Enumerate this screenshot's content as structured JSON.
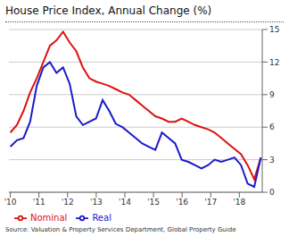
{
  "chart_data": {
    "type": "line",
    "title": "House Price Index, Annual Change (%)",
    "annotations": [
      "Source: Valuation & Property Services Department, Global Property Guide"
    ],
    "x": [
      2010,
      2010.230263,
      2010.460526,
      2010.690789,
      2010.921053,
      2011.151316,
      2011.381579,
      2011.611842,
      2011.842105,
      2012.072368,
      2012.302632,
      2012.532895,
      2012.763158,
      2012.993421,
      2013.223684,
      2013.453947,
      2013.684211,
      2013.914474,
      2014.144737,
      2014.375,
      2014.605263,
      2014.835526,
      2015.065789,
      2015.296053,
      2015.526316,
      2015.756579,
      2015.986842,
      2016.217105,
      2016.447368,
      2016.677632,
      2016.907895,
      2017.138158,
      2017.368421,
      2017.598684,
      2017.828947,
      2018.059211,
      2018.289474,
      2018.519737,
      2018.75
    ],
    "series": [
      {
        "name": "Nominal",
        "color": "#dd1111",
        "values": [
          5.5,
          6.2,
          7.5,
          9.2,
          10.5,
          12.0,
          13.5,
          14.0,
          14.8,
          13.8,
          13.0,
          11.5,
          10.5,
          10.2,
          10.0,
          9.8,
          9.5,
          9.2,
          9.0,
          8.5,
          8.0,
          7.5,
          7.0,
          6.8,
          6.5,
          6.5,
          6.8,
          6.5,
          6.2,
          6.0,
          5.8,
          5.5,
          5.0,
          4.5,
          4.0,
          3.5,
          2.5,
          1.2,
          3.2
        ]
      },
      {
        "name": "Real",
        "color": "#1a1acc",
        "values": [
          4.2,
          4.8,
          5.0,
          6.5,
          9.8,
          11.5,
          12.0,
          11.0,
          11.5,
          10.0,
          7.0,
          6.2,
          6.5,
          6.8,
          8.5,
          7.5,
          6.3,
          6.0,
          5.5,
          5.0,
          4.5,
          4.2,
          3.9,
          5.5,
          5.0,
          4.5,
          3.0,
          2.8,
          2.5,
          2.2,
          2.5,
          3.0,
          2.8,
          3.0,
          3.2,
          2.5,
          0.8,
          0.5,
          3.2
        ]
      }
    ],
    "xlim": [
      2009.95,
      2018.8
    ],
    "xticks": [
      {
        "value": 2010,
        "label": "'10"
      },
      {
        "value": 2011,
        "label": "'11"
      },
      {
        "value": 2012,
        "label": "'12"
      },
      {
        "value": 2013,
        "label": "'13"
      },
      {
        "value": 2014,
        "label": "'14"
      },
      {
        "value": 2015,
        "label": "'15"
      },
      {
        "value": 2016,
        "label": "'16"
      },
      {
        "value": 2017,
        "label": "'17"
      },
      {
        "value": 2018,
        "label": "'18"
      }
    ],
    "ylim": [
      0,
      15
    ],
    "yticks": [
      0,
      3,
      6,
      9,
      12,
      15
    ],
    "grid": true,
    "legend": "bottom-left"
  }
}
